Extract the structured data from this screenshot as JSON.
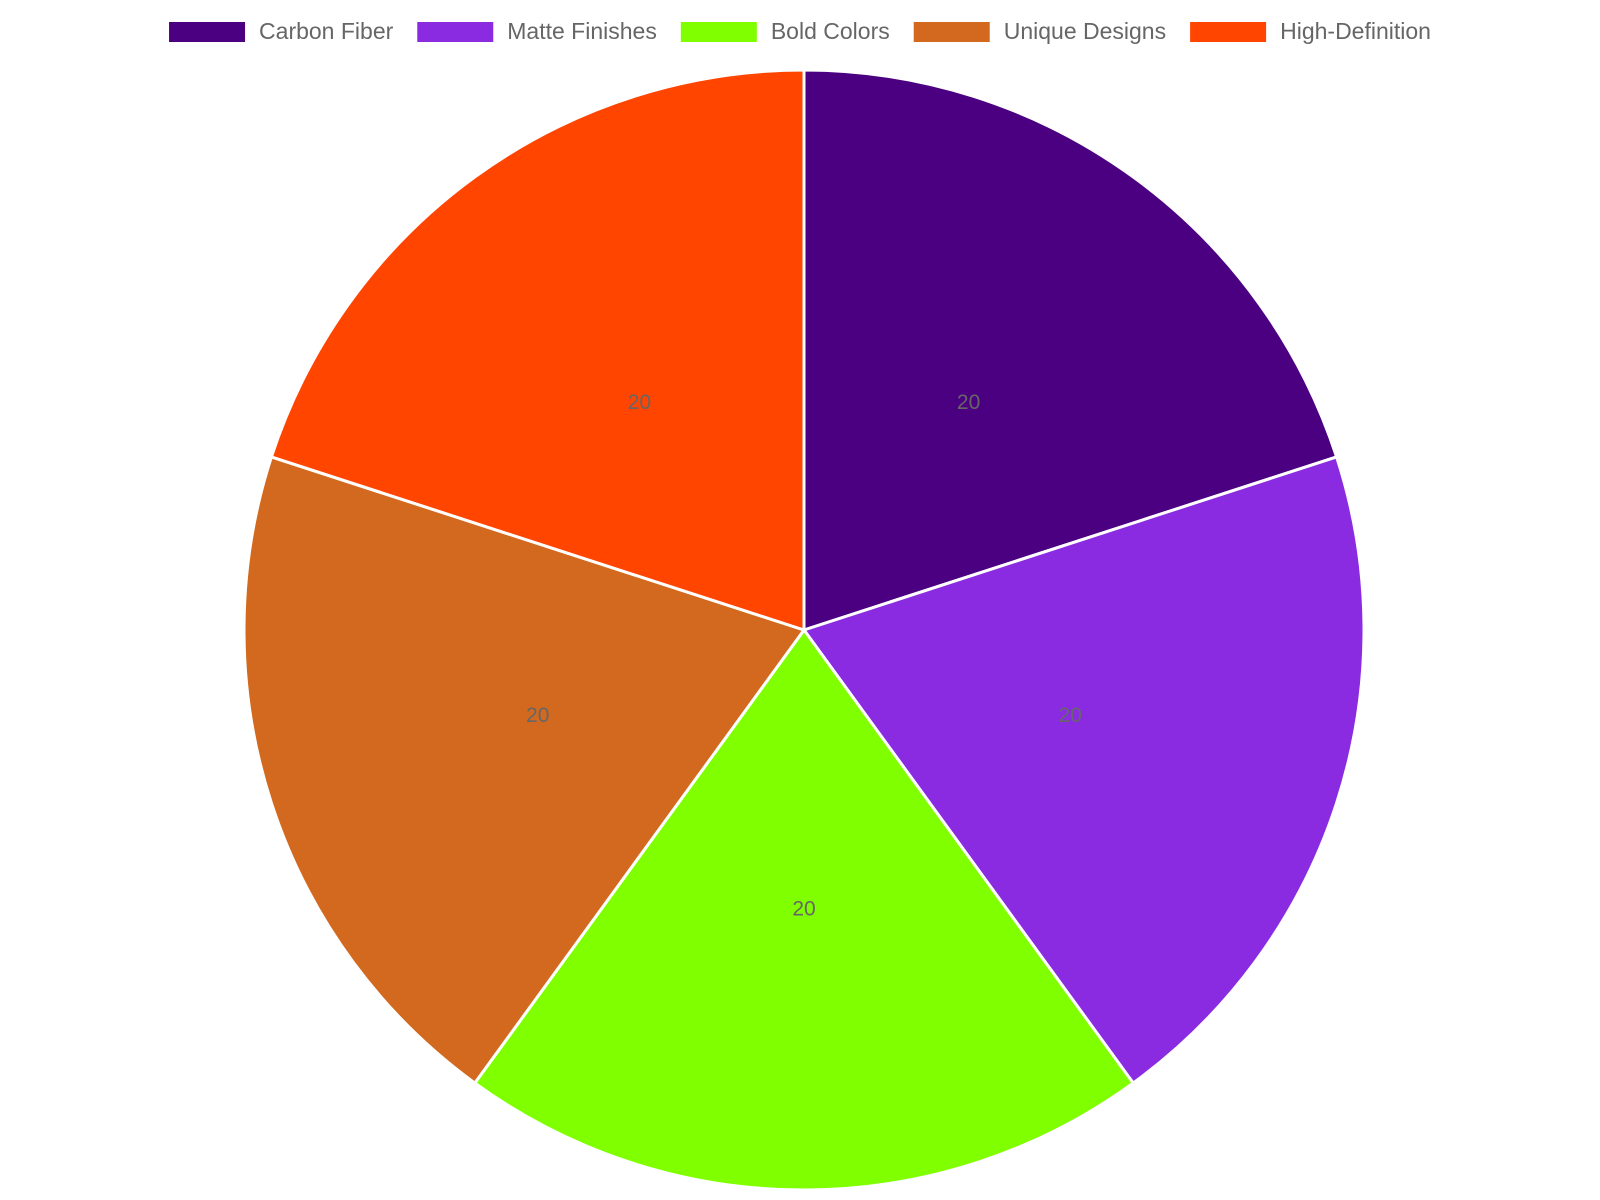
{
  "chart_data": {
    "type": "pie",
    "categories": [
      "Carbon Fiber",
      "Matte Finishes",
      "Bold Colors",
      "Unique Designs",
      "High-Definition"
    ],
    "values": [
      20,
      20,
      20,
      20,
      20
    ],
    "colors": [
      "#4b0082",
      "#8a2be2",
      "#7fff00",
      "#d2691e",
      "#ff4500"
    ],
    "legend": "top"
  }
}
